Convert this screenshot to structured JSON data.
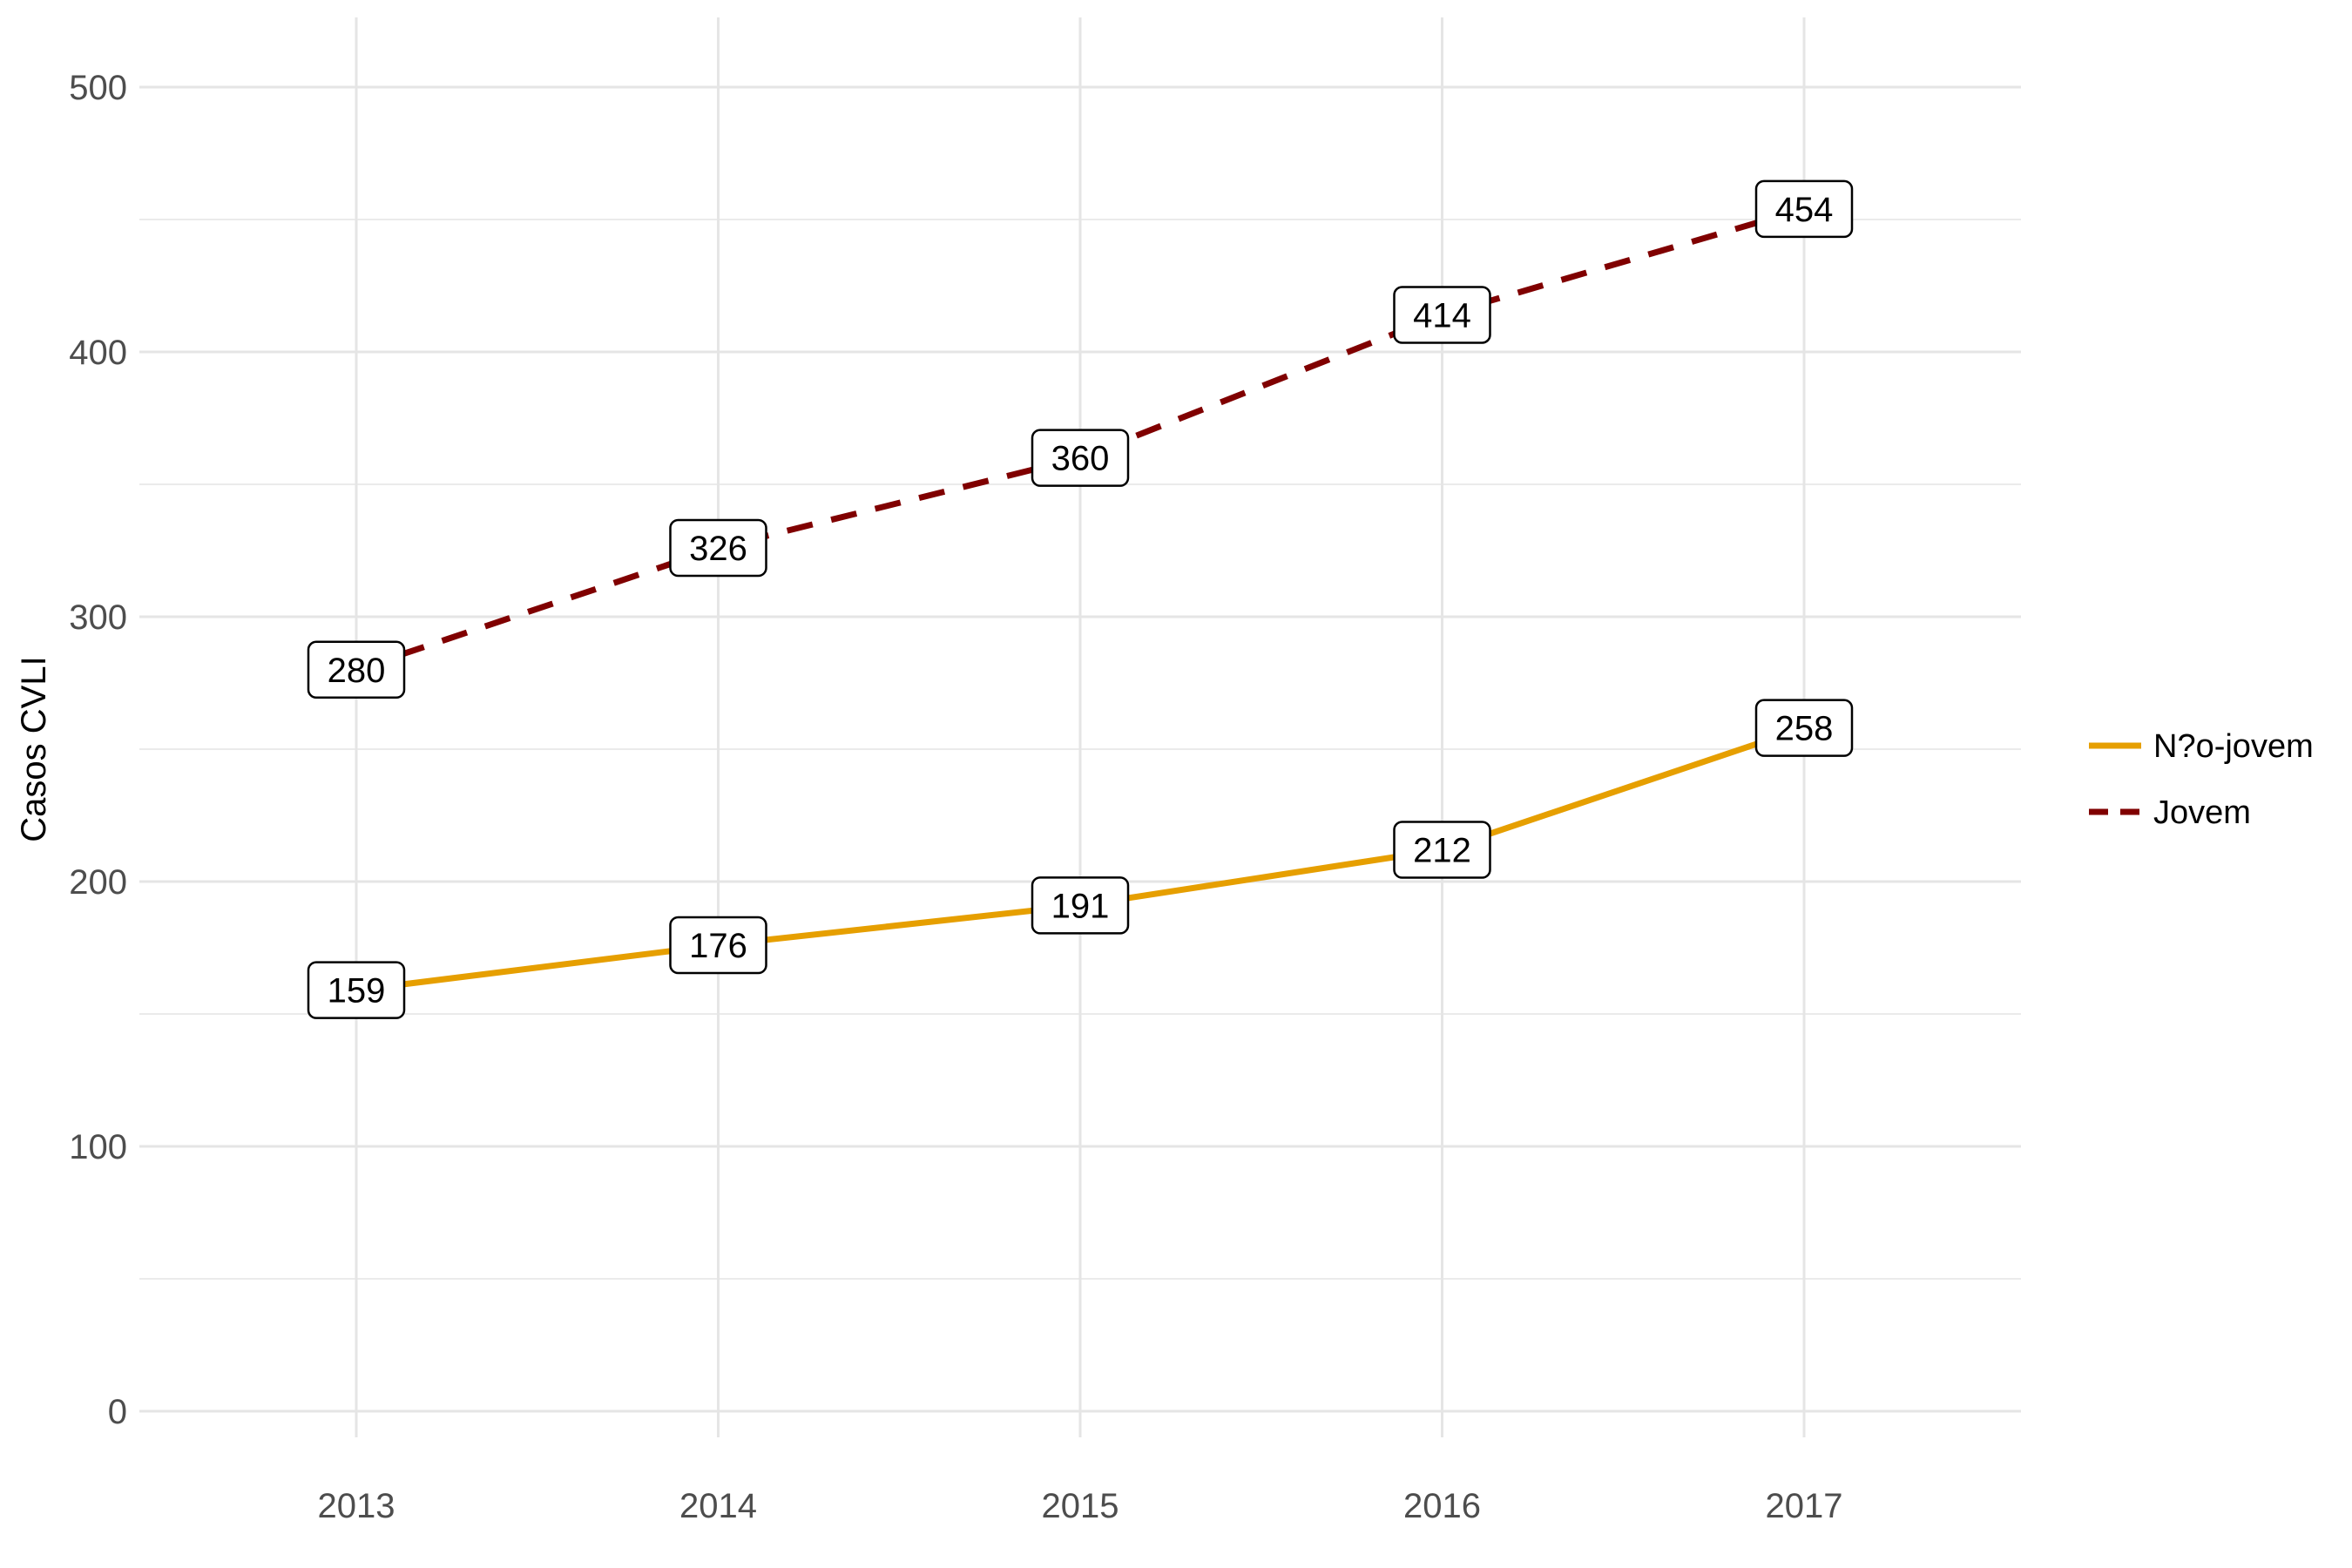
{
  "chart_data": {
    "type": "line",
    "xlabel": "",
    "ylabel": "Casos CVLI",
    "x": [
      2013,
      2014,
      2015,
      2016,
      2017
    ],
    "xlim": [
      2012.4,
      2017.6
    ],
    "ylim": [
      0,
      500
    ],
    "yticks": [
      0,
      100,
      200,
      300,
      400,
      500
    ],
    "grid": true,
    "legend_position": "right",
    "series": [
      {
        "name": "N?o-jovem",
        "values": [
          159,
          176,
          191,
          212,
          258
        ],
        "color": "#E69F00",
        "dash": "solid"
      },
      {
        "name": "Jovem",
        "values": [
          280,
          326,
          360,
          414,
          454
        ],
        "color": "#800000",
        "dash": "dashed"
      }
    ]
  }
}
